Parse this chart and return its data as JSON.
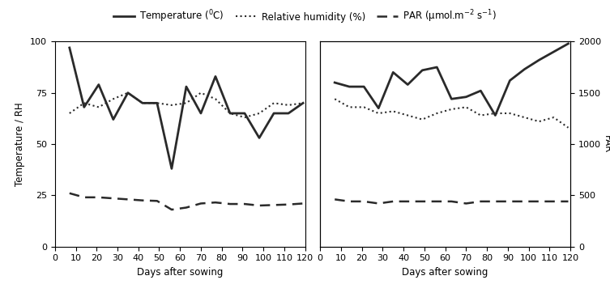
{
  "panel1": {
    "temp_das": [
      7,
      14,
      21,
      28,
      35,
      42,
      49,
      56,
      63,
      70,
      77,
      84,
      91,
      98,
      105,
      112,
      119
    ],
    "temp_vals": [
      97,
      68,
      79,
      62,
      75,
      70,
      70,
      38,
      78,
      65,
      83,
      65,
      65,
      53,
      65,
      65,
      70
    ],
    "rh_das": [
      7,
      14,
      21,
      28,
      35,
      42,
      49,
      56,
      63,
      70,
      77,
      84,
      91,
      98,
      105,
      112,
      119
    ],
    "rh_vals": [
      65,
      70,
      68,
      72,
      75,
      70,
      70,
      69,
      70,
      75,
      72,
      65,
      63,
      65,
      70,
      69,
      70
    ],
    "par_das": [
      7,
      14,
      21,
      28,
      35,
      42,
      49,
      56,
      63,
      70,
      77,
      84,
      91,
      98,
      105,
      112,
      119
    ],
    "par_vals": [
      520,
      480,
      480,
      470,
      460,
      450,
      445,
      360,
      380,
      420,
      430,
      415,
      415,
      400,
      405,
      410,
      420
    ]
  },
  "panel2": {
    "temp_das": [
      7,
      14,
      21,
      28,
      35,
      42,
      49,
      56,
      63,
      70,
      77,
      84,
      91,
      98,
      105,
      112,
      119
    ],
    "temp_vals": [
      23,
      22,
      22,
      21,
      22,
      22,
      22,
      22,
      22,
      21,
      22,
      22,
      22,
      22,
      22,
      22,
      22
    ],
    "rh_das": [
      7,
      14,
      21,
      28,
      35,
      42,
      49,
      56,
      63,
      70,
      77,
      84,
      91,
      98,
      105,
      112,
      119
    ],
    "rh_vals": [
      72,
      68,
      68,
      65,
      66,
      64,
      62,
      65,
      67,
      68,
      64,
      65,
      65,
      63,
      61,
      63,
      58
    ],
    "par_das": [
      7,
      14,
      21,
      28,
      35,
      42,
      49,
      56,
      63,
      70,
      77,
      84,
      91,
      98,
      105,
      112,
      119
    ],
    "par_vals": [
      1600,
      1560,
      1560,
      1350,
      1700,
      1580,
      1720,
      1750,
      1440,
      1460,
      1520,
      1280,
      1620,
      1730,
      1820,
      1900,
      1980
    ]
  },
  "ylim_left": [
    0,
    100
  ],
  "ylim_right": [
    0,
    2000
  ],
  "xlim": [
    0,
    120
  ],
  "xticks": [
    0,
    10,
    20,
    30,
    40,
    50,
    60,
    70,
    80,
    90,
    100,
    110,
    120
  ],
  "yticks_left": [
    0,
    25,
    50,
    75,
    100
  ],
  "yticks_right": [
    0,
    500,
    1000,
    1500,
    2000
  ],
  "xlabel": "Days after sowing",
  "ylabel_left": "Temperature / RH",
  "ylabel_right": "PAR",
  "legend_temp": "Temperature ($^{0}$C)",
  "legend_rh": "Relative humidity (%)",
  "legend_par": "PAR (μmol.m$^{-2}$ s$^{-1}$)",
  "bg_color": "#ffffff",
  "line_color": "#2a2a2a",
  "font_size": 8.5
}
